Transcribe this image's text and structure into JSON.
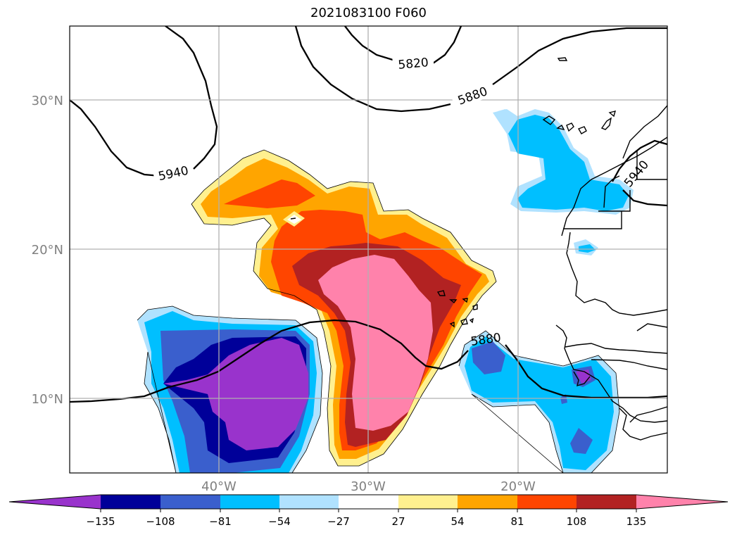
{
  "title": "2021083100 F060",
  "map": {
    "latitude_labels": [
      "30°N",
      "20°N",
      "10°N"
    ],
    "longitude_labels": [
      "40°W",
      "30°W",
      "20°W"
    ],
    "contour_labels": [
      "5940",
      "5820",
      "5880",
      "5880",
      "5940"
    ],
    "contour_color": "#000000",
    "gridline_color": "#b0b0b0"
  },
  "colorbar": {
    "tick_labels": [
      "−135",
      "−108",
      "−81",
      "−54",
      "−27",
      "27",
      "54",
      "81",
      "108",
      "135"
    ],
    "colors": [
      "#9933cc",
      "#000099",
      "#3a5fcd",
      "#00bfff",
      "#b0e2ff",
      "#ffffff",
      "#fff08f",
      "#ffa500",
      "#ff4500",
      "#b22222",
      "#ff82ab"
    ],
    "extend": "both"
  }
}
